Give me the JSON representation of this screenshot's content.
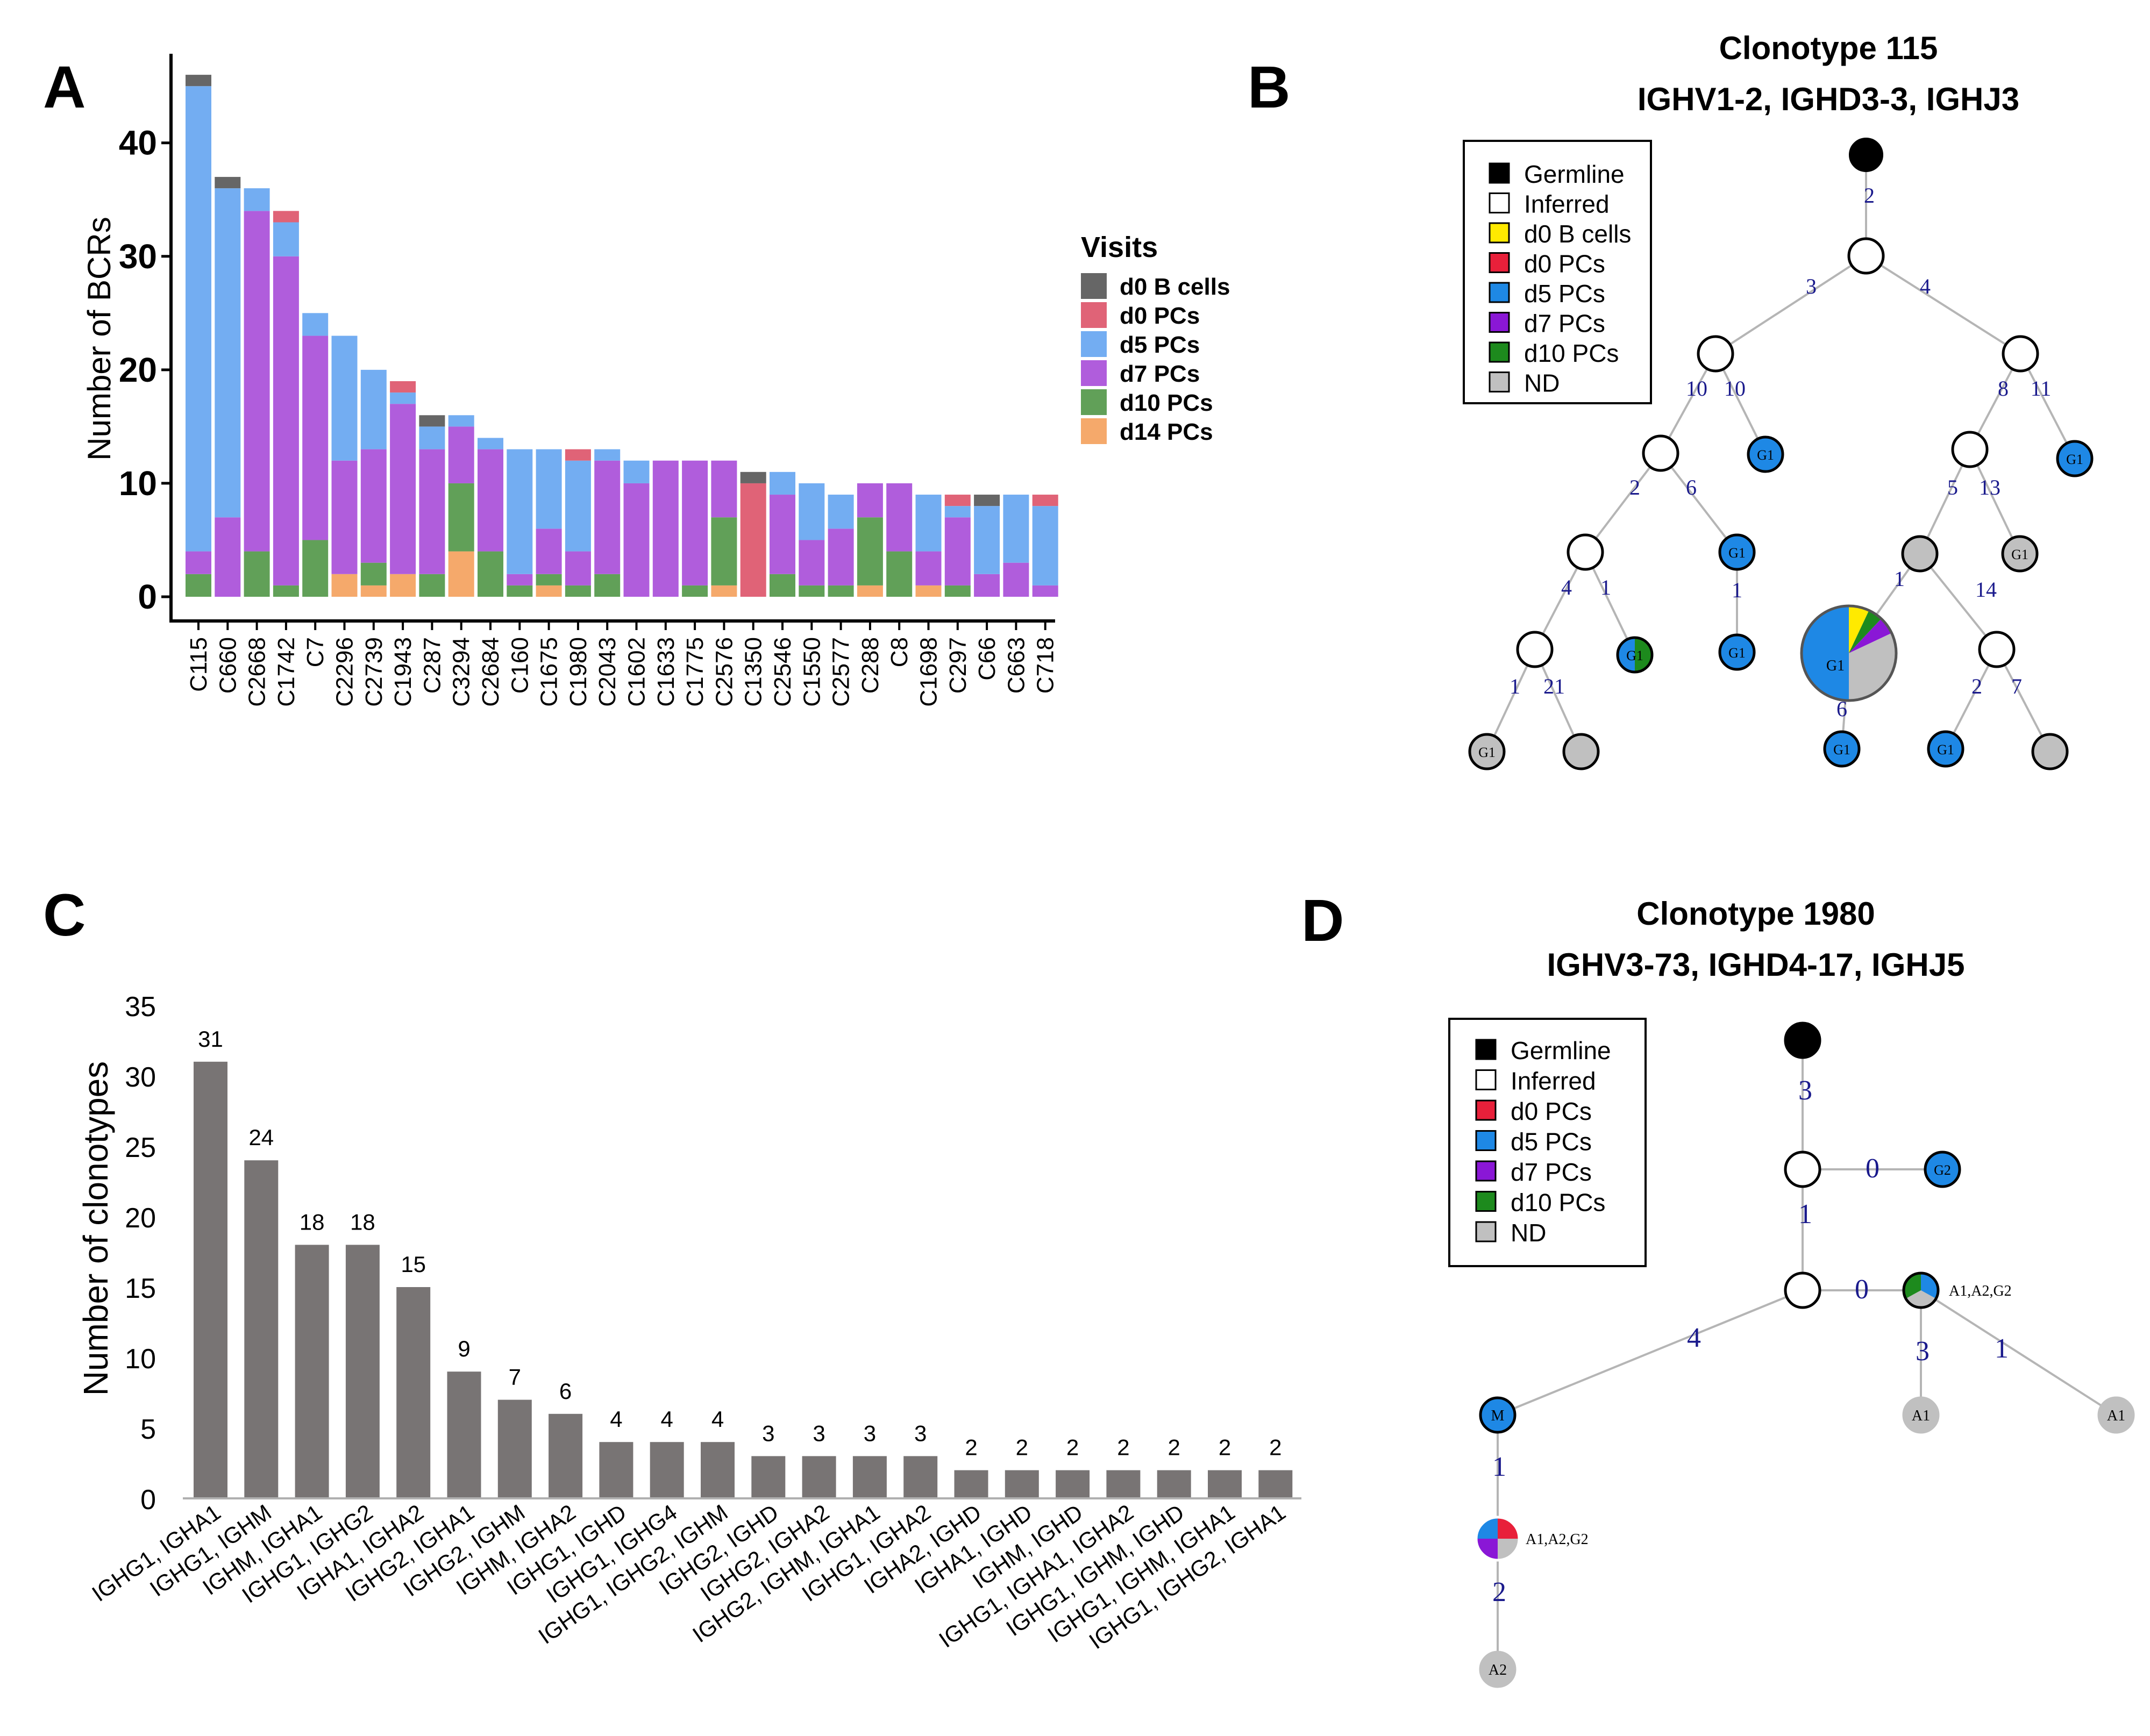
{
  "colors": {
    "d0_b": "#666666",
    "d0_pc": "#e06377",
    "d5_pc": "#73adf2",
    "d7_pc": "#b05ddc",
    "d10_pc": "#61a058",
    "d14_pc": "#f5a96b",
    "bar_gray": "#787474",
    "tree_d0_b": "#ffea00",
    "tree_d0_pc": "#e8203a",
    "tree_d5_pc": "#1e88e5",
    "tree_d7_pc": "#8a17d6",
    "tree_d10_pc": "#1d8a1d",
    "tree_nd": "#c0c0c0",
    "edge_label": "#1a1a8c",
    "edge": "#b5b5b5"
  },
  "panels": {
    "a": "A",
    "b": "B",
    "c": "C",
    "d": "D"
  },
  "chart_data": [
    {
      "type": "bar",
      "stacked": true,
      "panel": "A",
      "ylabel": "Number of BCRs",
      "ylim": [
        0,
        47
      ],
      "yticks": [
        0,
        10,
        20,
        30,
        40
      ],
      "legend_title": "Visits",
      "categories": [
        "C115",
        "C660",
        "C2668",
        "C1742",
        "C7",
        "C2296",
        "C2739",
        "C1943",
        "C287",
        "C3294",
        "C2684",
        "C160",
        "C1675",
        "C1980",
        "C2043",
        "C1602",
        "C1633",
        "C1775",
        "C2576",
        "C1350",
        "C2546",
        "C1550",
        "C2577",
        "C288",
        "C8",
        "C1698",
        "C297",
        "C66",
        "C663",
        "C718"
      ],
      "series": [
        {
          "name": "d14 PCs",
          "key": "d14_pc",
          "values": [
            0,
            0,
            0,
            0,
            0,
            2,
            1,
            2,
            0,
            4,
            0,
            0,
            1,
            0,
            0,
            0,
            0,
            0,
            1,
            0,
            0,
            0,
            0,
            1,
            0,
            1,
            0,
            0,
            0,
            0
          ]
        },
        {
          "name": "d10 PCs",
          "key": "d10_pc",
          "values": [
            2,
            0,
            4,
            1,
            5,
            0,
            2,
            0,
            2,
            6,
            4,
            1,
            1,
            1,
            2,
            0,
            0,
            1,
            6,
            0,
            2,
            1,
            1,
            6,
            4,
            0,
            1,
            0,
            0,
            0
          ]
        },
        {
          "name": "d7 PCs",
          "key": "d7_pc",
          "values": [
            2,
            7,
            30,
            29,
            18,
            10,
            10,
            15,
            11,
            5,
            9,
            1,
            4,
            3,
            10,
            10,
            12,
            11,
            5,
            0,
            7,
            4,
            5,
            3,
            6,
            3,
            6,
            2,
            3,
            1
          ]
        },
        {
          "name": "d5 PCs",
          "key": "d5_pc",
          "values": [
            41,
            29,
            2,
            3,
            2,
            11,
            7,
            1,
            2,
            1,
            1,
            11,
            7,
            8,
            1,
            2,
            0,
            0,
            0,
            0,
            2,
            5,
            3,
            0,
            0,
            5,
            1,
            6,
            6,
            7
          ]
        },
        {
          "name": "d0 PCs",
          "key": "d0_pc",
          "values": [
            0,
            0,
            0,
            1,
            0,
            0,
            0,
            1,
            0,
            0,
            0,
            0,
            0,
            1,
            0,
            0,
            0,
            0,
            0,
            10,
            0,
            0,
            0,
            0,
            0,
            0,
            1,
            0,
            0,
            1
          ]
        },
        {
          "name": "d0 B cells",
          "key": "d0_b",
          "values": [
            1,
            1,
            0,
            0,
            0,
            0,
            0,
            0,
            1,
            0,
            0,
            0,
            0,
            0,
            0,
            0,
            0,
            0,
            0,
            1,
            0,
            0,
            0,
            0,
            0,
            0,
            0,
            1,
            0,
            0
          ]
        }
      ],
      "legend_order": [
        "d0 B cells",
        "d0 PCs",
        "d5 PCs",
        "d7 PCs",
        "d10 PCs",
        "d14 PCs"
      ]
    },
    {
      "type": "bar",
      "panel": "C",
      "ylabel": "Number of clonotypes",
      "ylim": [
        0,
        35
      ],
      "yticks": [
        0,
        5,
        10,
        15,
        20,
        25,
        30,
        35
      ],
      "categories": [
        "IGHG1, IGHA1",
        "IGHG1, IGHM",
        "IGHM, IGHA1",
        "IGHG1, IGHG2",
        "IGHA1, IGHA2",
        "IGHG2, IGHA1",
        "IGHG2, IGHM",
        "IGHM, IGHA2",
        "IGHG1, IGHD",
        "IGHG1, IGHG4",
        "IGHG1, IGHG2, IGHM",
        "IGHG2, IGHD",
        "IGHG2, IGHA2",
        "IGHG2, IGHM, IGHA1",
        "IGHG1, IGHA2",
        "IGHA2, IGHD",
        "IGHA1, IGHD",
        "IGHM, IGHD",
        "IGHG1, IGHA1, IGHA2",
        "IGHG1, IGHM, IGHD",
        "IGHG1, IGHM, IGHA1",
        "IGHG1, IGHG2, IGHA1"
      ],
      "values": [
        31,
        24,
        18,
        18,
        15,
        9,
        7,
        6,
        4,
        4,
        4,
        3,
        3,
        3,
        3,
        2,
        2,
        2,
        2,
        2,
        2,
        2
      ]
    }
  ],
  "tree_b": {
    "title1": "Clonotype 115",
    "title2": "IGHV1-2, IGHD3-3, IGHJ3",
    "legend": [
      {
        "label": "Germline",
        "key": "germ"
      },
      {
        "label": "Inferred",
        "key": "inf"
      },
      {
        "label": "d0 B cells",
        "key": "tree_d0_b"
      },
      {
        "label": "d0 PCs",
        "key": "tree_d0_pc"
      },
      {
        "label": "d5 PCs",
        "key": "tree_d5_pc"
      },
      {
        "label": "d7 PCs",
        "key": "tree_d7_pc"
      },
      {
        "label": "d10 PCs",
        "key": "tree_d10_pc"
      },
      {
        "label": "ND",
        "key": "tree_nd"
      }
    ],
    "edges": [
      {
        "from": "germ",
        "to": "n1",
        "label": "2"
      },
      {
        "from": "n1",
        "to": "n2",
        "label": "3"
      },
      {
        "from": "n1",
        "to": "n3",
        "label": "4"
      },
      {
        "from": "n2",
        "to": "n4",
        "label": "10"
      },
      {
        "from": "n2",
        "to": "g1a",
        "label": "10"
      },
      {
        "from": "n3",
        "to": "n5",
        "label": "8"
      },
      {
        "from": "n3",
        "to": "g1b",
        "label": "11"
      },
      {
        "from": "n4",
        "to": "n6",
        "label": "2"
      },
      {
        "from": "n4",
        "to": "g1c",
        "label": "6"
      },
      {
        "from": "g1c",
        "to": "g1d",
        "label": "1"
      },
      {
        "from": "n5",
        "to": "nd1",
        "label": "5"
      },
      {
        "from": "n5",
        "to": "g1nd",
        "label": "13"
      },
      {
        "from": "n6",
        "to": "n7",
        "label": "4"
      },
      {
        "from": "n6",
        "to": "g1green",
        "label": "1"
      },
      {
        "from": "n7",
        "to": "g1ndl",
        "label": "1"
      },
      {
        "from": "n7",
        "to": "nd2",
        "label": "21"
      },
      {
        "from": "nd1",
        "to": "big",
        "label": "1"
      },
      {
        "from": "nd1",
        "to": "n8",
        "label": "14"
      },
      {
        "from": "big",
        "to": "g1e",
        "label": "6"
      },
      {
        "from": "n8",
        "to": "g1f",
        "label": "2"
      },
      {
        "from": "n8",
        "to": "nd3",
        "label": "7"
      }
    ],
    "node_text": {
      "g1": "G1"
    }
  },
  "tree_d": {
    "title1": "Clonotype 1980",
    "title2": "IGHV3-73, IGHD4-17, IGHJ5",
    "legend": [
      {
        "label": "Germline",
        "key": "germ"
      },
      {
        "label": "Inferred",
        "key": "inf"
      },
      {
        "label": "d0 PCs",
        "key": "tree_d0_pc"
      },
      {
        "label": "d5 PCs",
        "key": "tree_d5_pc"
      },
      {
        "label": "d7 PCs",
        "key": "tree_d7_pc"
      },
      {
        "label": "d10 PCs",
        "key": "tree_d10_pc"
      },
      {
        "label": "ND",
        "key": "tree_nd"
      }
    ],
    "edges": [
      {
        "from": "germ",
        "to": "n1",
        "label": "3"
      },
      {
        "from": "n1",
        "to": "g2",
        "label": "0"
      },
      {
        "from": "n1",
        "to": "n2",
        "label": "1"
      },
      {
        "from": "n2",
        "to": "mix1",
        "label": "0"
      },
      {
        "from": "n2",
        "to": "m",
        "label": "4"
      },
      {
        "from": "mix1",
        "to": "a1a",
        "label": "3"
      },
      {
        "from": "mix1",
        "to": "a1b",
        "label": "1"
      },
      {
        "from": "m",
        "to": "mix2",
        "label": "1"
      },
      {
        "from": "mix2",
        "to": "a2",
        "label": "2"
      }
    ],
    "node_text": {
      "g2": "G2",
      "m": "M",
      "a1": "A1",
      "a2": "A2",
      "mix": "A1,A2,G2"
    }
  }
}
